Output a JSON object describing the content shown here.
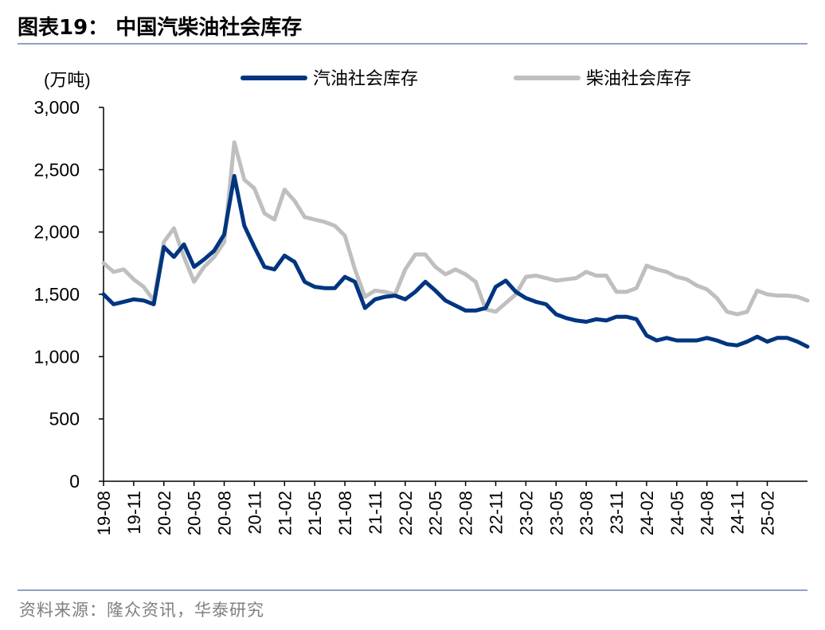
{
  "header": {
    "title": "图表19：  中国汽柴油社会库存"
  },
  "footer": {
    "source": "资料来源：隆众资讯，华泰研究"
  },
  "colors": {
    "gasoline": "#003580",
    "diesel": "#bfbfbf",
    "rule": "#8da1c4"
  },
  "chart_data": {
    "type": "line",
    "unit_label": "(万吨)",
    "ylim": [
      0,
      3000
    ],
    "yticks": [
      "0",
      "500",
      "1,000",
      "1,500",
      "2,000",
      "2,500",
      "3,000"
    ],
    "ytick_values": [
      0,
      500,
      1000,
      1500,
      2000,
      2500,
      3000
    ],
    "x_tick_labels": [
      "19-08",
      "19-11",
      "20-02",
      "20-05",
      "20-08",
      "20-11",
      "21-02",
      "21-05",
      "21-08",
      "21-11",
      "22-02",
      "22-05",
      "22-08",
      "22-11",
      "23-02",
      "23-05",
      "23-08",
      "23-11",
      "24-02",
      "24-05",
      "24-08",
      "24-11",
      "25-02"
    ],
    "x_range": [
      "2019-08",
      "2025-06"
    ],
    "grid": false,
    "legend_position": "top",
    "series": [
      {
        "name": "汽油社会库存",
        "points": [
          [
            "2019-08",
            1500
          ],
          [
            "2019-09",
            1420
          ],
          [
            "2019-10",
            1440
          ],
          [
            "2019-11",
            1460
          ],
          [
            "2019-12",
            1450
          ],
          [
            "2020-01",
            1420
          ],
          [
            "2020-02",
            1880
          ],
          [
            "2020-03",
            1800
          ],
          [
            "2020-04",
            1900
          ],
          [
            "2020-05",
            1720
          ],
          [
            "2020-06",
            1780
          ],
          [
            "2020-07",
            1850
          ],
          [
            "2020-08",
            1980
          ],
          [
            "2020-09",
            2450
          ],
          [
            "2020-10",
            2050
          ],
          [
            "2020-11",
            1880
          ],
          [
            "2020-12",
            1720
          ],
          [
            "2021-01",
            1700
          ],
          [
            "2021-02",
            1810
          ],
          [
            "2021-03",
            1760
          ],
          [
            "2021-04",
            1600
          ],
          [
            "2021-05",
            1560
          ],
          [
            "2021-06",
            1550
          ],
          [
            "2021-07",
            1550
          ],
          [
            "2021-08",
            1640
          ],
          [
            "2021-09",
            1600
          ],
          [
            "2021-10",
            1390
          ],
          [
            "2021-11",
            1460
          ],
          [
            "2021-12",
            1480
          ],
          [
            "2022-01",
            1490
          ],
          [
            "2022-02",
            1460
          ],
          [
            "2022-03",
            1520
          ],
          [
            "2022-04",
            1600
          ],
          [
            "2022-05",
            1530
          ],
          [
            "2022-06",
            1450
          ],
          [
            "2022-07",
            1410
          ],
          [
            "2022-08",
            1370
          ],
          [
            "2022-09",
            1370
          ],
          [
            "2022-10",
            1390
          ],
          [
            "2022-11",
            1560
          ],
          [
            "2022-12",
            1610
          ],
          [
            "2023-01",
            1520
          ],
          [
            "2023-02",
            1470
          ],
          [
            "2023-03",
            1440
          ],
          [
            "2023-04",
            1420
          ],
          [
            "2023-05",
            1340
          ],
          [
            "2023-06",
            1310
          ],
          [
            "2023-07",
            1290
          ],
          [
            "2023-08",
            1280
          ],
          [
            "2023-09",
            1300
          ],
          [
            "2023-10",
            1290
          ],
          [
            "2023-11",
            1320
          ],
          [
            "2023-12",
            1320
          ],
          [
            "2024-01",
            1300
          ],
          [
            "2024-02",
            1170
          ],
          [
            "2024-03",
            1130
          ],
          [
            "2024-04",
            1150
          ],
          [
            "2024-05",
            1130
          ],
          [
            "2024-06",
            1130
          ],
          [
            "2024-07",
            1130
          ],
          [
            "2024-08",
            1150
          ],
          [
            "2024-09",
            1130
          ],
          [
            "2024-10",
            1100
          ],
          [
            "2024-11",
            1090
          ],
          [
            "2024-12",
            1120
          ],
          [
            "2025-01",
            1160
          ],
          [
            "2025-02",
            1120
          ],
          [
            "2025-03",
            1150
          ],
          [
            "2025-04",
            1150
          ],
          [
            "2025-05",
            1120
          ],
          [
            "2025-06",
            1080
          ]
        ]
      },
      {
        "name": "柴油社会库存",
        "points": [
          [
            "2019-08",
            1750
          ],
          [
            "2019-09",
            1680
          ],
          [
            "2019-10",
            1700
          ],
          [
            "2019-11",
            1620
          ],
          [
            "2019-12",
            1560
          ],
          [
            "2020-01",
            1450
          ],
          [
            "2020-02",
            1920
          ],
          [
            "2020-03",
            2030
          ],
          [
            "2020-04",
            1800
          ],
          [
            "2020-05",
            1600
          ],
          [
            "2020-06",
            1720
          ],
          [
            "2020-07",
            1800
          ],
          [
            "2020-08",
            1920
          ],
          [
            "2020-09",
            2720
          ],
          [
            "2020-10",
            2420
          ],
          [
            "2020-11",
            2350
          ],
          [
            "2020-12",
            2150
          ],
          [
            "2021-01",
            2100
          ],
          [
            "2021-02",
            2340
          ],
          [
            "2021-03",
            2250
          ],
          [
            "2021-04",
            2120
          ],
          [
            "2021-05",
            2100
          ],
          [
            "2021-06",
            2080
          ],
          [
            "2021-07",
            2050
          ],
          [
            "2021-08",
            1970
          ],
          [
            "2021-09",
            1700
          ],
          [
            "2021-10",
            1480
          ],
          [
            "2021-11",
            1530
          ],
          [
            "2021-12",
            1520
          ],
          [
            "2022-01",
            1500
          ],
          [
            "2022-02",
            1700
          ],
          [
            "2022-03",
            1820
          ],
          [
            "2022-04",
            1820
          ],
          [
            "2022-05",
            1720
          ],
          [
            "2022-06",
            1660
          ],
          [
            "2022-07",
            1700
          ],
          [
            "2022-08",
            1660
          ],
          [
            "2022-09",
            1600
          ],
          [
            "2022-10",
            1380
          ],
          [
            "2022-11",
            1360
          ],
          [
            "2022-12",
            1430
          ],
          [
            "2023-01",
            1500
          ],
          [
            "2023-02",
            1640
          ],
          [
            "2023-03",
            1650
          ],
          [
            "2023-04",
            1630
          ],
          [
            "2023-05",
            1610
          ],
          [
            "2023-06",
            1620
          ],
          [
            "2023-07",
            1630
          ],
          [
            "2023-08",
            1680
          ],
          [
            "2023-09",
            1650
          ],
          [
            "2023-10",
            1650
          ],
          [
            "2023-11",
            1520
          ],
          [
            "2023-12",
            1520
          ],
          [
            "2024-01",
            1550
          ],
          [
            "2024-02",
            1730
          ],
          [
            "2024-03",
            1700
          ],
          [
            "2024-04",
            1680
          ],
          [
            "2024-05",
            1640
          ],
          [
            "2024-06",
            1620
          ],
          [
            "2024-07",
            1570
          ],
          [
            "2024-08",
            1540
          ],
          [
            "2024-09",
            1470
          ],
          [
            "2024-10",
            1360
          ],
          [
            "2024-11",
            1340
          ],
          [
            "2024-12",
            1360
          ],
          [
            "2025-01",
            1530
          ],
          [
            "2025-02",
            1500
          ],
          [
            "2025-03",
            1490
          ],
          [
            "2025-04",
            1490
          ],
          [
            "2025-05",
            1480
          ],
          [
            "2025-06",
            1450
          ]
        ]
      }
    ]
  }
}
